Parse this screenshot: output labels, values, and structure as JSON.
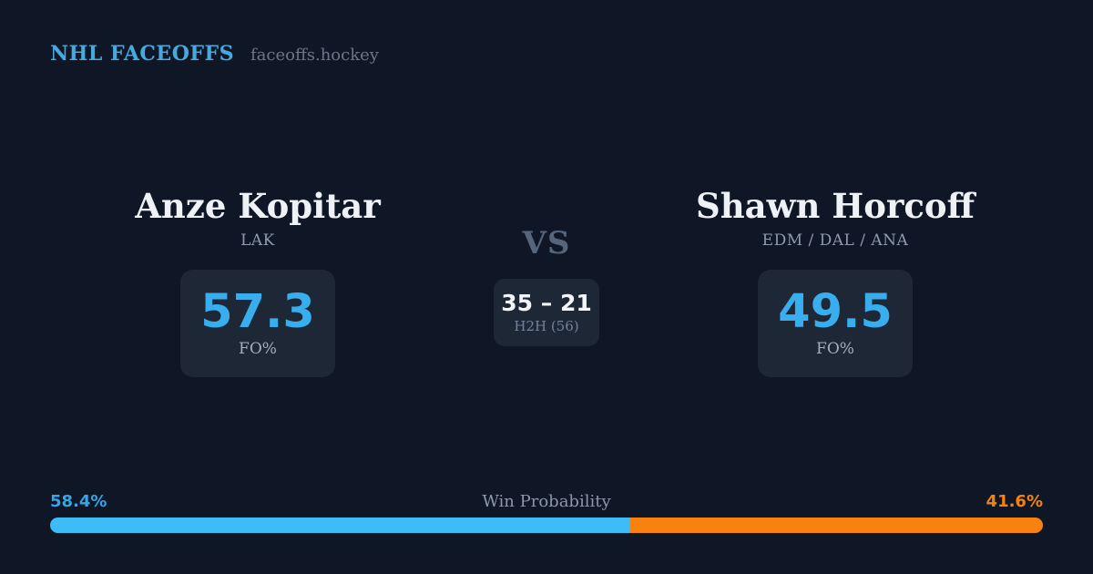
{
  "header": {
    "brand": "NHL FACEOFFS",
    "site": "faceoffs.hockey"
  },
  "players": {
    "left": {
      "name": "Anze Kopitar",
      "teams": "LAK",
      "stat_value": "57.3",
      "stat_label": "FO%"
    },
    "right": {
      "name": "Shawn Horcoff",
      "teams": "EDM / DAL / ANA",
      "stat_value": "49.5",
      "stat_label": "FO%"
    }
  },
  "center": {
    "vs_label": "VS",
    "h2h_score": "35 – 21",
    "h2h_label": "H2H (56)"
  },
  "win_probability": {
    "title": "Win Probability",
    "left_label": "58.4%",
    "right_label": "41.6%",
    "left_value": 58.4,
    "right_value": 41.6
  },
  "colors": {
    "background": "#0F1726",
    "card_background": "#1D2735",
    "brand_blue": "#47A9DE",
    "number_blue": "#38AEEE",
    "bar_blue": "#3DBDF7",
    "bar_orange": "#F8820E",
    "pct_label_blue": "#34A5E6",
    "pct_label_orange": "#F5820D"
  }
}
